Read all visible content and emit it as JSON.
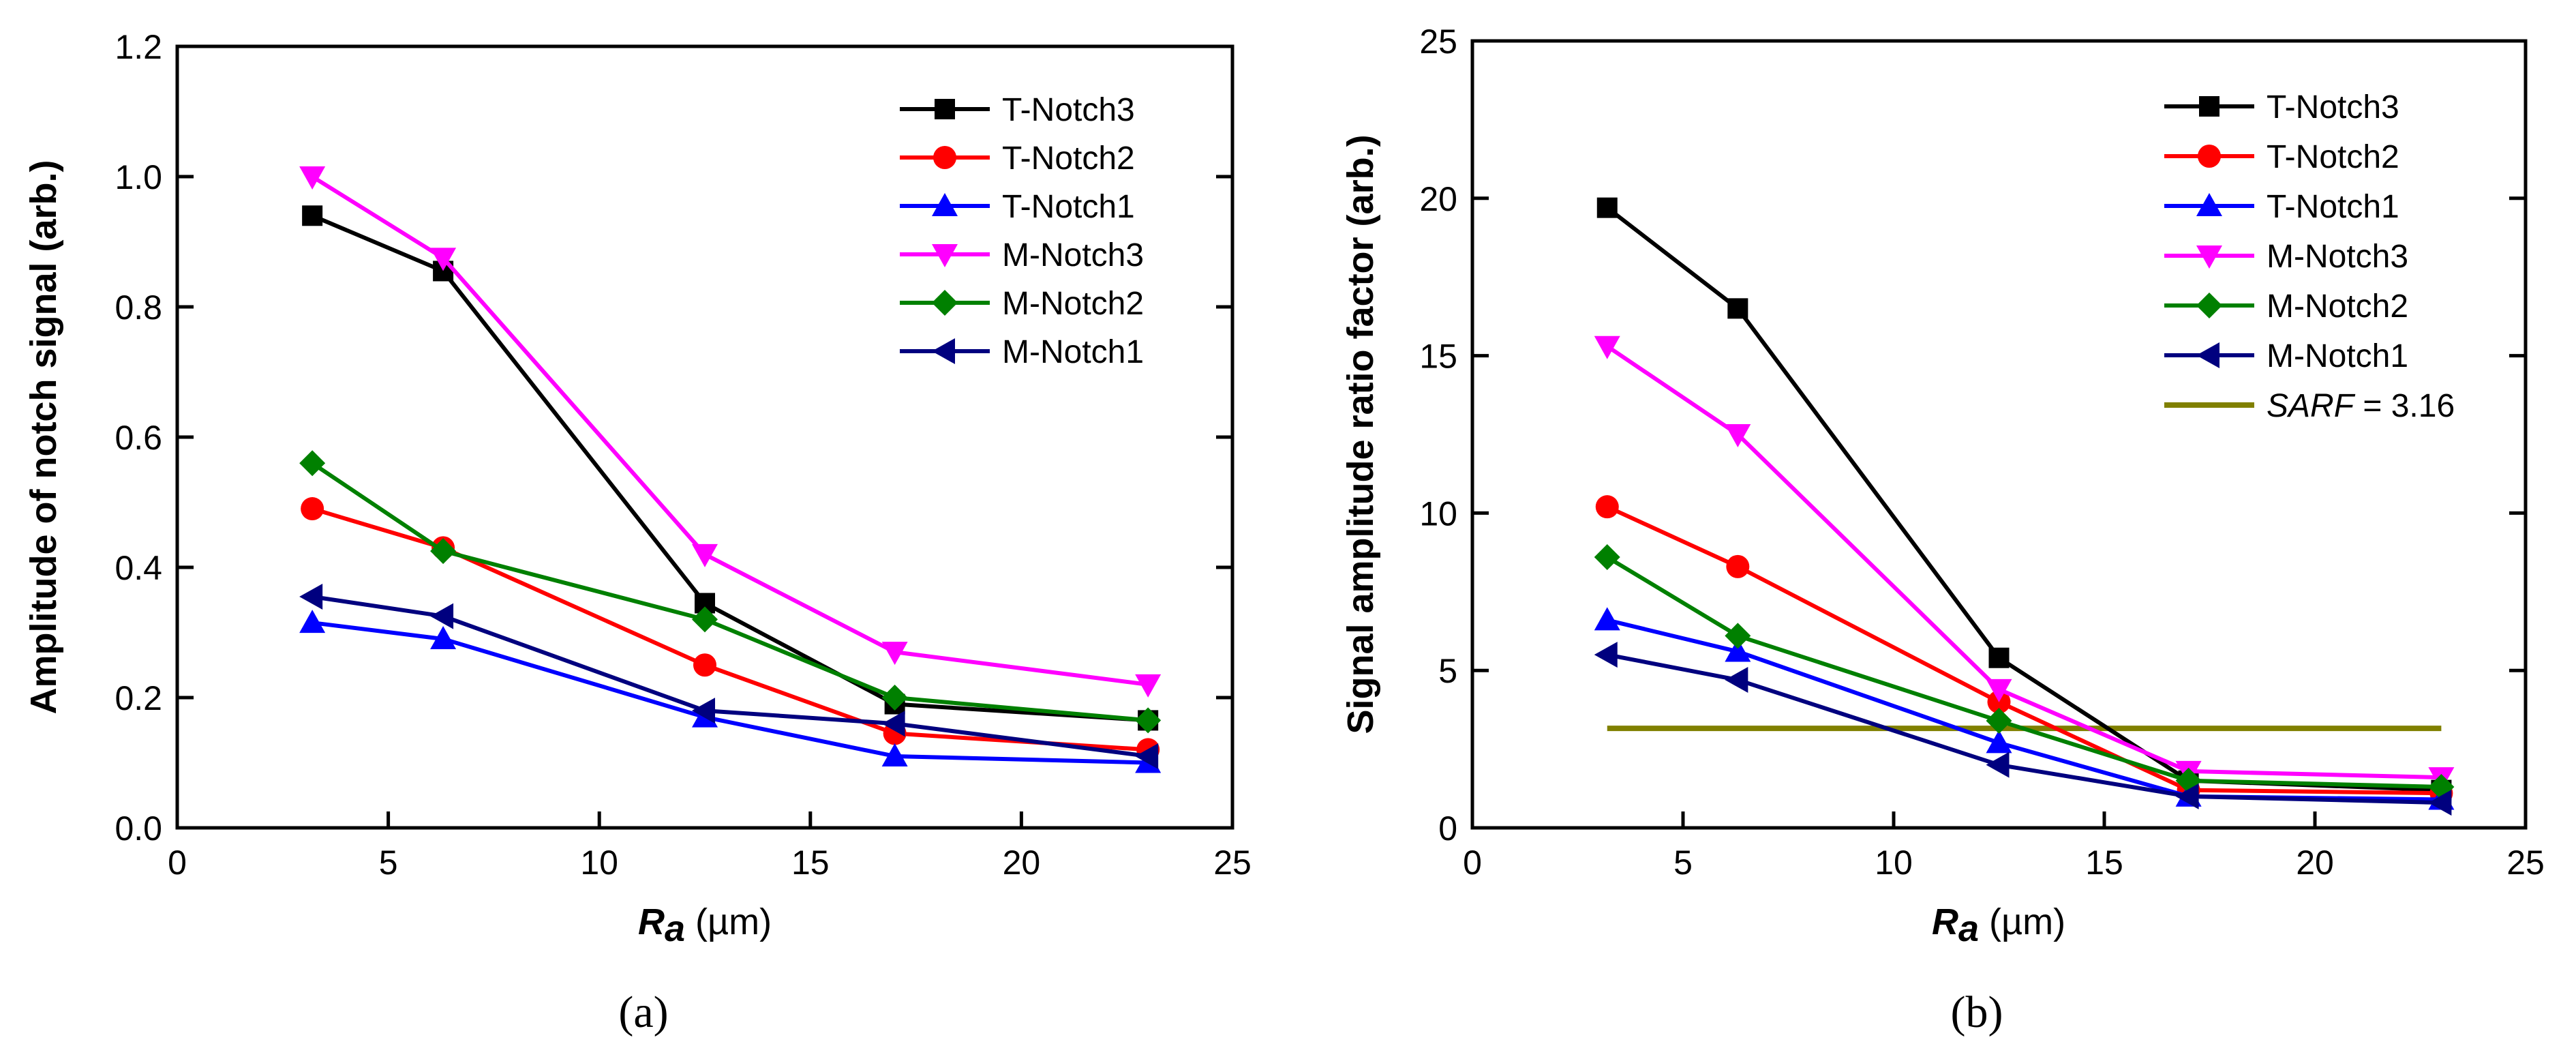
{
  "chart_data": [
    {
      "type": "line",
      "panel_label": "(a)",
      "xlabel_symbol": "R",
      "xlabel_sub": "a",
      "xlabel_unit": " (µm)",
      "ylabel": "Amplitude of notch signal (arb.)",
      "xlim": [
        0,
        25
      ],
      "ylim": [
        0,
        1.2
      ],
      "xticks": [
        0,
        5,
        10,
        15,
        20,
        25
      ],
      "xtick_labels": [
        "0",
        "5",
        "10",
        "15",
        "20",
        "25"
      ],
      "yticks": [
        0,
        0.2,
        0.4,
        0.6,
        0.8,
        1.0,
        1.2
      ],
      "ytick_labels": [
        "0.0",
        "0.2",
        "0.4",
        "0.6",
        "0.8",
        "1.0",
        "1.2"
      ],
      "legend_position": "top-right",
      "x": [
        3.2,
        6.3,
        12.5,
        17,
        23
      ],
      "series": [
        {
          "name": "T-Notch3",
          "color": "#000000",
          "marker": "square",
          "values": [
            0.94,
            0.855,
            0.345,
            0.19,
            0.165
          ]
        },
        {
          "name": "T-Notch2",
          "color": "#ff0000",
          "marker": "circle",
          "values": [
            0.49,
            0.43,
            0.25,
            0.145,
            0.12
          ]
        },
        {
          "name": "T-Notch1",
          "color": "#0000ff",
          "marker": "triangle-up",
          "values": [
            0.315,
            0.29,
            0.17,
            0.11,
            0.1
          ]
        },
        {
          "name": "M-Notch3",
          "color": "#ff00ff",
          "marker": "triangle-down",
          "values": [
            1.0,
            0.875,
            0.42,
            0.27,
            0.22
          ]
        },
        {
          "name": "M-Notch2",
          "color": "#008000",
          "marker": "diamond",
          "values": [
            0.56,
            0.425,
            0.32,
            0.2,
            0.165
          ]
        },
        {
          "name": "M-Notch1",
          "color": "#00007f",
          "marker": "triangle-left",
          "values": [
            0.355,
            0.325,
            0.18,
            0.16,
            0.11
          ]
        }
      ]
    },
    {
      "type": "line",
      "panel_label": "(b)",
      "xlabel_symbol": "R",
      "xlabel_sub": "a",
      "xlabel_unit": " (µm)",
      "ylabel": "Signal amplitude ratio factor (arb.)",
      "xlim": [
        0,
        25
      ],
      "ylim": [
        0,
        25
      ],
      "xticks": [
        0,
        5,
        10,
        15,
        20,
        25
      ],
      "xtick_labels": [
        "0",
        "5",
        "10",
        "15",
        "20",
        "25"
      ],
      "yticks": [
        0,
        5,
        10,
        15,
        20,
        25
      ],
      "ytick_labels": [
        "0",
        "5",
        "10",
        "15",
        "20",
        "25"
      ],
      "legend_position": "top-right",
      "x": [
        3.2,
        6.3,
        12.5,
        17,
        23
      ],
      "series": [
        {
          "name": "T-Notch3",
          "color": "#000000",
          "marker": "square",
          "values": [
            19.7,
            16.5,
            5.4,
            1.5,
            1.2
          ]
        },
        {
          "name": "T-Notch2",
          "color": "#ff0000",
          "marker": "circle",
          "values": [
            10.2,
            8.3,
            4.0,
            1.2,
            1.1
          ]
        },
        {
          "name": "T-Notch1",
          "color": "#0000ff",
          "marker": "triangle-up",
          "values": [
            6.6,
            5.6,
            2.7,
            1.0,
            0.9
          ]
        },
        {
          "name": "M-Notch3",
          "color": "#ff00ff",
          "marker": "triangle-down",
          "values": [
            15.3,
            12.5,
            4.4,
            1.8,
            1.6
          ]
        },
        {
          "name": "M-Notch2",
          "color": "#008000",
          "marker": "diamond",
          "values": [
            8.6,
            6.1,
            3.4,
            1.5,
            1.3
          ]
        },
        {
          "name": "M-Notch1",
          "color": "#00007f",
          "marker": "triangle-left",
          "values": [
            5.5,
            4.7,
            2.0,
            1.0,
            0.8
          ]
        }
      ],
      "reference_line": {
        "label_italic": "SARF",
        "label_rest": " = 3.16",
        "value": 3.16,
        "x_range": [
          3.2,
          23
        ],
        "color": "#808000"
      }
    }
  ]
}
